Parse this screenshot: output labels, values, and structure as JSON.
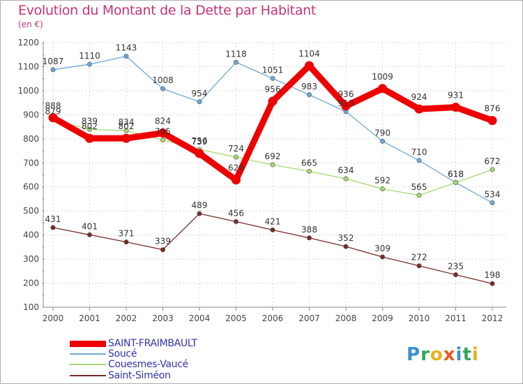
{
  "title": "Evolution du Montant de la Dette par Habitant",
  "subtitle": "(en €)",
  "logo": {
    "letters": [
      {
        "ch": "P",
        "color": "#3a8fd0"
      },
      {
        "ch": "r",
        "color": "#2fa85a"
      },
      {
        "ch": "o",
        "color": "#e8b020"
      },
      {
        "ch": "x",
        "color": "#e85a20"
      },
      {
        "ch": "i",
        "color": "#3a8fd0"
      },
      {
        "ch": "t",
        "color": "#2fa85a"
      },
      {
        "ch": "i",
        "color": "#e8b020"
      }
    ]
  },
  "chart_data": {
    "type": "line",
    "title": "Evolution du Montant de la Dette par Habitant",
    "subtitle": "(en €)",
    "x": [
      "2000",
      "2001",
      "2002",
      "2003",
      "2004",
      "2005",
      "2006",
      "2007",
      "2008",
      "2009",
      "2010",
      "2011",
      "2012"
    ],
    "ylim": [
      100,
      1200
    ],
    "yticks": [
      100,
      200,
      300,
      400,
      500,
      600,
      700,
      800,
      900,
      1000,
      1100,
      1200
    ],
    "grid": true,
    "legend_position": "bottom-left",
    "series": [
      {
        "name": "SAINT-FRAIMBAULT",
        "color": "#ee0000",
        "weight": "thick",
        "values": [
          888,
          802,
          802,
          824,
          739,
          629,
          956,
          1104,
          936,
          1009,
          924,
          931,
          876
        ],
        "labels": [
          "888",
          "802",
          "802",
          "824",
          "739",
          "629",
          "956",
          "1104",
          "936",
          "1009",
          "924",
          "931",
          "876"
        ]
      },
      {
        "name": "Soucé",
        "color": "#6fa8d6",
        "weight": "thin",
        "values": [
          1087,
          1110,
          1143,
          1008,
          954,
          1118,
          1051,
          983,
          913,
          790,
          710,
          618,
          534
        ],
        "labels": [
          "1087",
          "1110",
          "1143",
          "1008",
          "954",
          "1118",
          "1051",
          "983",
          "913",
          "790",
          "710",
          "618",
          "534"
        ]
      },
      {
        "name": "Couesmes-Vaucé",
        "color": "#a6d86e",
        "weight": "thin",
        "values": [
          879,
          839,
          834,
          795,
          756,
          724,
          692,
          665,
          634,
          592,
          565,
          618,
          672
        ],
        "labels": [
          "879",
          "839",
          "834",
          "795",
          "756",
          "724",
          "692",
          "665",
          "634",
          "592",
          "565",
          "618",
          "672"
        ]
      },
      {
        "name": "Saint-Siméon",
        "color": "#7a2a2a",
        "weight": "thin",
        "values": [
          431,
          401,
          371,
          339,
          489,
          456,
          421,
          388,
          352,
          309,
          272,
          235,
          198
        ],
        "labels": [
          "431",
          "401",
          "371",
          "339",
          "489",
          "456",
          "421",
          "388",
          "352",
          "309",
          "272",
          "235",
          "198"
        ]
      }
    ]
  }
}
